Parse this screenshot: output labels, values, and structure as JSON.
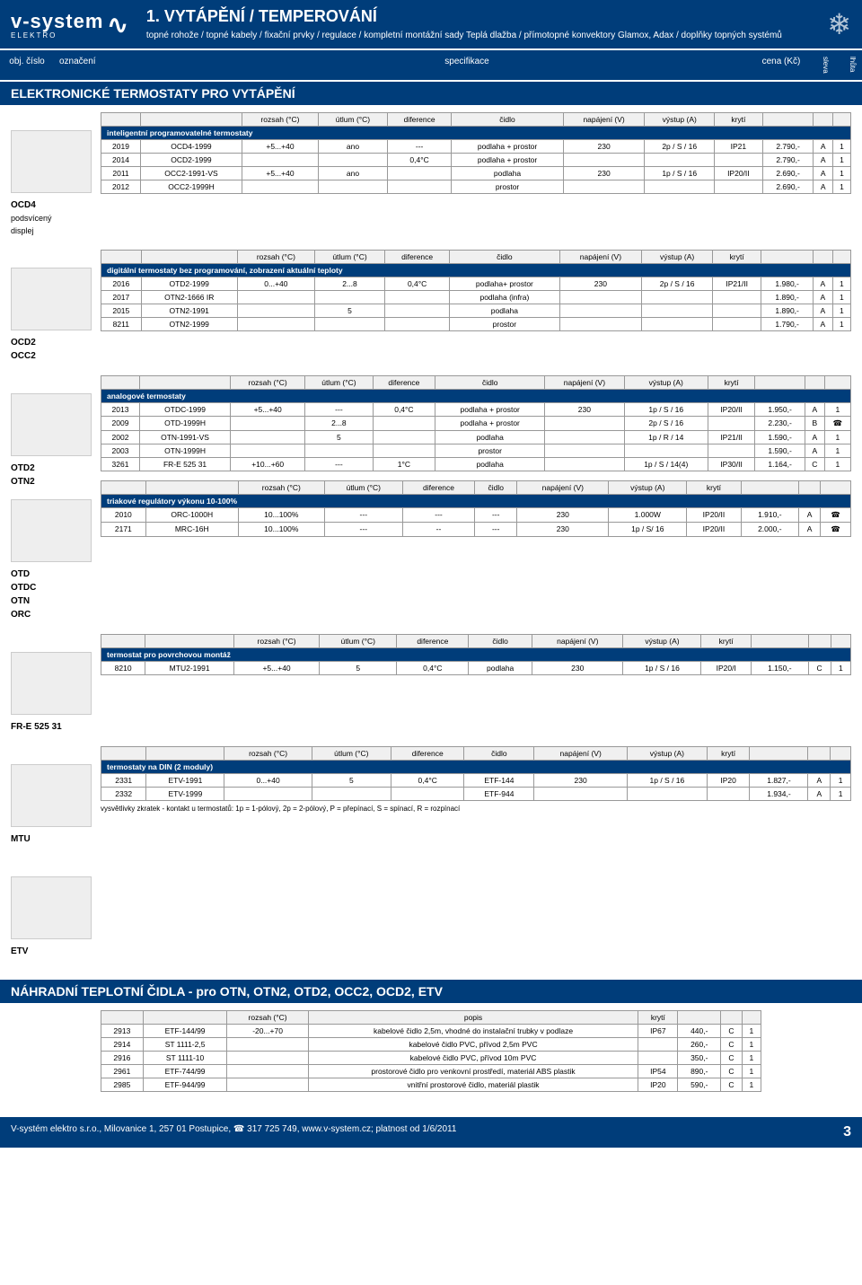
{
  "brand": {
    "name": "v-system",
    "sub": "ELEKTRO"
  },
  "header": {
    "title": "1. VYTÁPĚNÍ / TEMPEROVÁNÍ",
    "subtitle": "topné rohože / topné kabely / fixační prvky / regulace / kompletní montážní sady Teplá dlažba / přímotopné konvektory Glamox, Adax / doplňky topných systémů"
  },
  "colhead": {
    "obj": "obj. číslo",
    "ozn": "označení",
    "spec": "specifikace",
    "cena": "cena (Kč)",
    "sleva": "sleva",
    "lhuta": "lhůta"
  },
  "sec1": "ELEKTRONICKÉ TERMOSTATY PRO VYTÁPĚNÍ",
  "th": {
    "rozsah": "rozsah (°C)",
    "utlum": "útlum (°C)",
    "diff": "diference",
    "cidlo": "čidlo",
    "nap": "napájení (V)",
    "vystup": "výstup (A)",
    "kryti": "krytí",
    "popis": "popis"
  },
  "g1": {
    "labels": [
      "OCD4",
      "podsvícený",
      "displej"
    ],
    "cat": "inteligentní programovatelné termostaty",
    "rows": [
      [
        "2019",
        "OCD4-1999",
        "+5...+40",
        "ano",
        "---",
        "podlaha + prostor",
        "230",
        "2p / S / 16",
        "IP21",
        "2.790,-",
        "A",
        "1"
      ],
      [
        "2014",
        "OCD2-1999",
        "",
        "",
        "0,4°C",
        "podlaha + prostor",
        "",
        "",
        "",
        "2.790,-",
        "A",
        "1"
      ],
      [
        "2011",
        "OCC2-1991-VS",
        "+5...+40",
        "ano",
        "",
        "podlaha",
        "230",
        "1p / S / 16",
        "IP20/II",
        "2.690,-",
        "A",
        "1"
      ],
      [
        "2012",
        "OCC2-1999H",
        "",
        "",
        "",
        "prostor",
        "",
        "",
        "",
        "2.690,-",
        "A",
        "1"
      ]
    ]
  },
  "g2": {
    "labels": [
      "OCD2",
      "OCC2"
    ],
    "cat": "digitální termostaty bez programování, zobrazení aktuální teploty",
    "rows": [
      [
        "2016",
        "OTD2-1999",
        "0...+40",
        "2...8",
        "0,4°C",
        "podlaha+ prostor",
        "230",
        "2p / S / 16",
        "IP21/II",
        "1.980,-",
        "A",
        "1"
      ],
      [
        "2017",
        "OTN2-1666 IR",
        "",
        "",
        "",
        "podlaha (infra)",
        "",
        "",
        "",
        "1.890,-",
        "A",
        "1"
      ],
      [
        "2015",
        "OTN2-1991",
        "",
        "5",
        "",
        "podlaha",
        "",
        "",
        "",
        "1.890,-",
        "A",
        "1"
      ],
      [
        "8211",
        "OTN2-1999",
        "",
        "",
        "",
        "prostor",
        "",
        "",
        "",
        "1.790,-",
        "A",
        "1"
      ]
    ]
  },
  "g3a": {
    "labels": [
      "OTD2",
      "OTN2",
      "",
      "OTD",
      "OTDC",
      "OTN",
      "ORC"
    ],
    "cat": "analogové termostaty",
    "rows": [
      [
        "2013",
        "OTDC-1999",
        "+5...+40",
        "---",
        "0,4°C",
        "podlaha + prostor",
        "230",
        "1p / S / 16",
        "IP20/II",
        "1.950,-",
        "A",
        "1"
      ],
      [
        "2009",
        "OTD-1999H",
        "",
        "2...8",
        "",
        "podlaha + prostor",
        "",
        "2p / S / 16",
        "",
        "2.230,-",
        "B",
        "☎"
      ],
      [
        "2002",
        "OTN-1991-VS",
        "",
        "5",
        "",
        "podlaha",
        "",
        "1p / R / 14",
        "IP21/II",
        "1.590,-",
        "A",
        "1"
      ],
      [
        "2003",
        "OTN-1999H",
        "",
        "",
        "",
        "prostor",
        "",
        "",
        "",
        "1.590,-",
        "A",
        "1"
      ],
      [
        "3261",
        "FR-E 525 31",
        "+10...+60",
        "---",
        "1°C",
        "podlaha",
        "",
        "1p / S / 14(4)",
        "IP30/II",
        "1.164,-",
        "C",
        "1"
      ]
    ]
  },
  "g3b": {
    "cat": "triakové regulátory výkonu 10-100%",
    "rows": [
      [
        "2010",
        "ORC-1000H",
        "10...100%",
        "---",
        "---",
        "---",
        "230",
        "1.000W",
        "IP20/II",
        "1.910,-",
        "A",
        "☎"
      ],
      [
        "2171",
        "MRC-16H",
        "10...100%",
        "---",
        "--",
        "---",
        "230",
        "1p / S/ 16",
        "IP20/II",
        "2.000,-",
        "A",
        "☎"
      ]
    ]
  },
  "g4": {
    "labels": [
      "FR-E 525 31"
    ],
    "cat": "termostat pro povrchovou montáž",
    "rows": [
      [
        "8210",
        "MTU2-1991",
        "+5...+40",
        "5",
        "0,4°C",
        "podlaha",
        "230",
        "1p / S / 16",
        "IP20/I",
        "1.150,-",
        "C",
        "1"
      ]
    ]
  },
  "g5": {
    "labels": [
      "MTU"
    ],
    "cat": "termostaty na DIN (2 moduly)",
    "rows": [
      [
        "2331",
        "ETV-1991",
        "0...+40",
        "5",
        "0,4°C",
        "ETF-144",
        "230",
        "1p / S / 16",
        "IP20",
        "1.827,-",
        "A",
        "1"
      ],
      [
        "2332",
        "ETV-1999",
        "",
        "",
        "",
        "ETF-944",
        "",
        "",
        "",
        "1.934,-",
        "A",
        "1"
      ]
    ],
    "note": "vysvětlivky zkratek - kontakt u termostatů: 1p = 1-pólový, 2p = 2-pólový, P = přepínací, S = spínací, R = rozpínací"
  },
  "etv": "ETV",
  "sec2": "NÁHRADNÍ TEPLOTNÍ ČIDLA - pro OTN, OTN2, OTD2, OCC2, OCD2, ETV",
  "sensors": {
    "rows": [
      [
        "2913",
        "ETF-144/99",
        "-20...+70",
        "kabelové čidlo 2,5m, vhodné do instalační trubky v podlaze",
        "IP67",
        "440,-",
        "C",
        "1"
      ],
      [
        "2914",
        "ST 1111-2,5",
        "",
        "kabelové čidlo PVC, přívod 2,5m PVC",
        "",
        "260,-",
        "C",
        "1"
      ],
      [
        "2916",
        "ST 1111-10",
        "",
        "kabelové čidlo PVC, přívod 10m PVC",
        "",
        "350,-",
        "C",
        "1"
      ],
      [
        "2961",
        "ETF-744/99",
        "",
        "prostorové čidlo pro venkovní prostředí, materiál ABS plastik",
        "IP54",
        "890,-",
        "C",
        "1"
      ],
      [
        "2985",
        "ETF-944/99",
        "",
        "vnitřní prostorové čidlo, materiál plastik",
        "IP20",
        "590,-",
        "C",
        "1"
      ]
    ]
  },
  "footer": {
    "text": "V-systém elektro s.r.o., Milovanice 1, 257 01 Postupice, ☎ 317 725 749, www.v-system.cz; platnost od 1/6/2011",
    "page": "3"
  }
}
